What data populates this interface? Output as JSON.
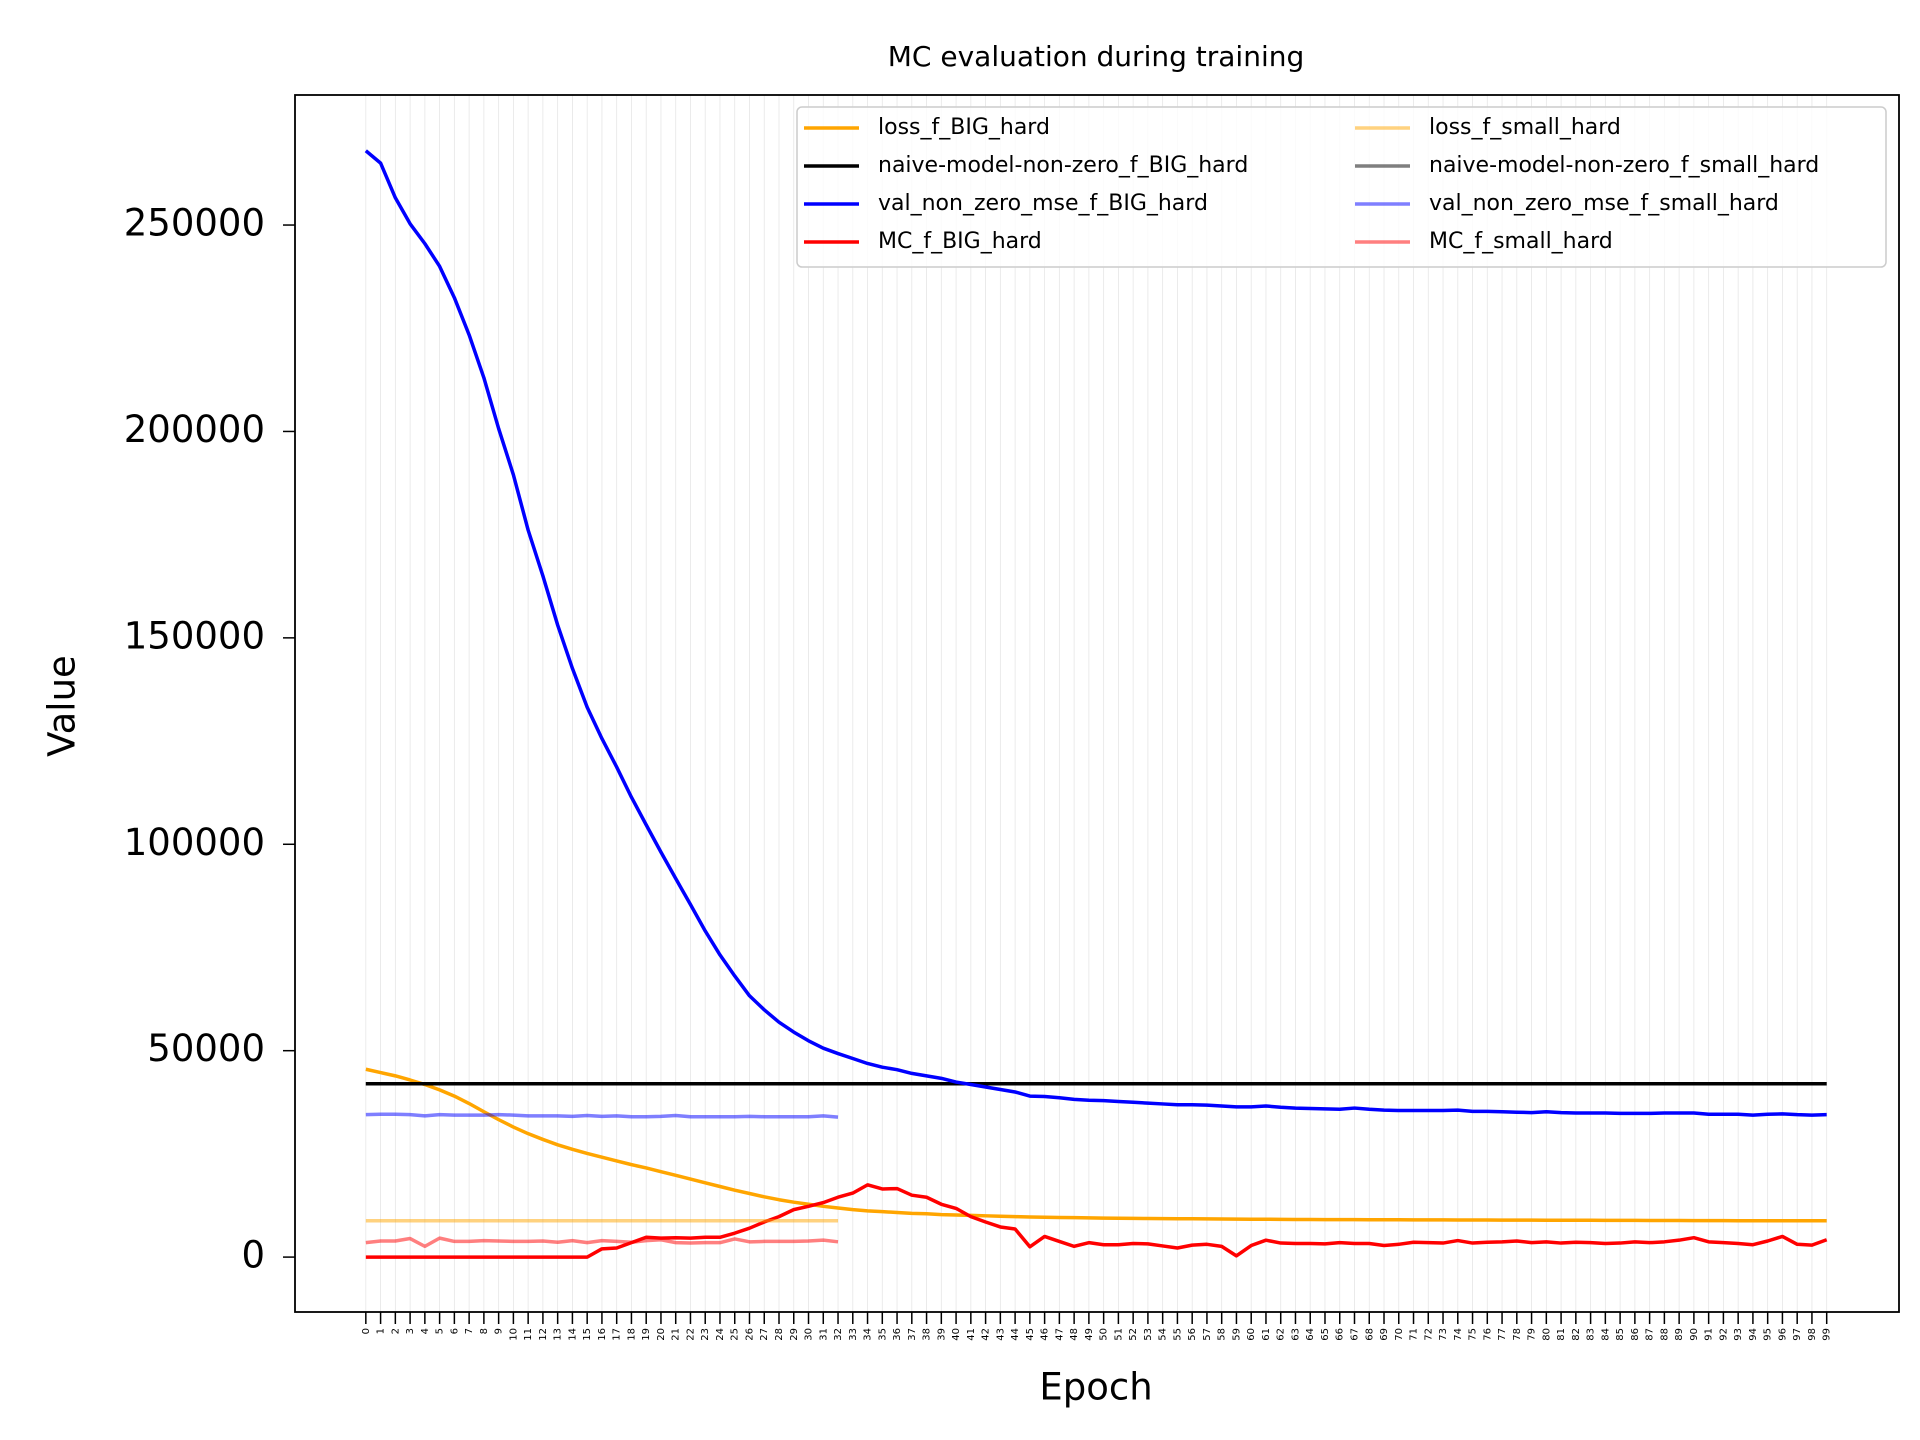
{
  "chart_data": {
    "type": "line",
    "title": "MC evaluation during training",
    "xlabel": "Epoch",
    "ylabel": "Value",
    "x": [
      0,
      1,
      2,
      3,
      4,
      5,
      6,
      7,
      8,
      9,
      10,
      11,
      12,
      13,
      14,
      15,
      16,
      17,
      18,
      19,
      20,
      21,
      22,
      23,
      24,
      25,
      26,
      27,
      28,
      29,
      30,
      31,
      32,
      33,
      34,
      35,
      36,
      37,
      38,
      39,
      40,
      41,
      42,
      43,
      44,
      45,
      46,
      47,
      48,
      49,
      50,
      51,
      52,
      53,
      54,
      55,
      56,
      57,
      58,
      59,
      60,
      61,
      62,
      63,
      64,
      65,
      66,
      67,
      68,
      69,
      70,
      71,
      72,
      73,
      74,
      75,
      76,
      77,
      78,
      79,
      80,
      81,
      82,
      83,
      84,
      85,
      86,
      87,
      88,
      89,
      90,
      91,
      92,
      93,
      94,
      95,
      96,
      97,
      98,
      99
    ],
    "xlim": [
      -4.8,
      103.9
    ],
    "xticks": [
      0,
      1,
      2,
      3,
      4,
      5,
      6,
      7,
      8,
      9,
      10,
      11,
      12,
      13,
      14,
      15,
      16,
      17,
      18,
      19,
      20,
      21,
      22,
      23,
      24,
      25,
      26,
      27,
      28,
      29,
      30,
      31,
      32,
      33,
      34,
      35,
      36,
      37,
      38,
      39,
      40,
      41,
      42,
      43,
      44,
      45,
      46,
      47,
      48,
      49,
      50,
      51,
      52,
      53,
      54,
      55,
      56,
      57,
      58,
      59,
      60,
      61,
      62,
      63,
      64,
      65,
      66,
      67,
      68,
      69,
      70,
      71,
      72,
      73,
      74,
      75,
      76,
      77,
      78,
      79,
      80,
      81,
      82,
      83,
      84,
      85,
      86,
      87,
      88,
      89,
      90,
      91,
      92,
      93,
      94,
      95,
      96,
      97,
      98,
      99
    ],
    "ylim": [
      -13300,
      281500
    ],
    "yticks": [
      0,
      50000,
      100000,
      150000,
      200000,
      250000
    ],
    "grid": "x",
    "legend": "upper right",
    "series": [
      {
        "name": "loss_f_BIG_hard",
        "color": "#ffa500",
        "alpha": 1,
        "values": [
          45500,
          44700,
          43900,
          42900,
          41800,
          40500,
          39000,
          37200,
          35200,
          33300,
          31500,
          29900,
          28500,
          27200,
          26100,
          25100,
          24200,
          23300,
          22400,
          21600,
          20700,
          19800,
          18900,
          18000,
          17100,
          16200,
          15400,
          14600,
          13900,
          13300,
          12800,
          12300,
          11900,
          11500,
          11200,
          11000,
          10800,
          10600,
          10500,
          10300,
          10200,
          10100,
          10000,
          9900,
          9800,
          9700,
          9650,
          9600,
          9550,
          9500,
          9450,
          9400,
          9380,
          9350,
          9320,
          9300,
          9280,
          9250,
          9230,
          9200,
          9180,
          9160,
          9140,
          9120,
          9100,
          9090,
          9080,
          9070,
          9060,
          9050,
          9040,
          9030,
          9020,
          9010,
          9000,
          8990,
          8980,
          8970,
          8960,
          8950,
          8940,
          8930,
          8920,
          8910,
          8900,
          8890,
          8880,
          8870,
          8860,
          8850,
          8840,
          8830,
          8820,
          8810,
          8800,
          8800,
          8800,
          8800,
          8800,
          8800
        ]
      },
      {
        "name": "naive-model-non-zero_f_BIG_hard",
        "color": "#000000",
        "alpha": 1,
        "values": [
          42000,
          42000,
          42000,
          42000,
          42000,
          42000,
          42000,
          42000,
          42000,
          42000,
          42000,
          42000,
          42000,
          42000,
          42000,
          42000,
          42000,
          42000,
          42000,
          42000,
          42000,
          42000,
          42000,
          42000,
          42000,
          42000,
          42000,
          42000,
          42000,
          42000,
          42000,
          42000,
          42000,
          42000,
          42000,
          42000,
          42000,
          42000,
          42000,
          42000,
          42000,
          42000,
          42000,
          42000,
          42000,
          42000,
          42000,
          42000,
          42000,
          42000,
          42000,
          42000,
          42000,
          42000,
          42000,
          42000,
          42000,
          42000,
          42000,
          42000,
          42000,
          42000,
          42000,
          42000,
          42000,
          42000,
          42000,
          42000,
          42000,
          42000,
          42000,
          42000,
          42000,
          42000,
          42000,
          42000,
          42000,
          42000,
          42000,
          42000,
          42000,
          42000,
          42000,
          42000,
          42000,
          42000,
          42000,
          42000,
          42000,
          42000,
          42000,
          42000,
          42000,
          42000,
          42000,
          42000,
          42000,
          42000,
          42000,
          42000
        ]
      },
      {
        "name": "val_non_zero_mse_f_BIG_hard",
        "color": "#0000ff",
        "alpha": 1,
        "values": [
          268000,
          265000,
          256600,
          250300,
          245500,
          240000,
          232400,
          223400,
          213000,
          200700,
          189500,
          176100,
          165000,
          153100,
          142600,
          133200,
          125600,
          118700,
          111400,
          104700,
          98100,
          91700,
          85400,
          79000,
          73200,
          68100,
          63300,
          59900,
          56900,
          54500,
          52400,
          50600,
          49300,
          48100,
          46900,
          46000,
          45400,
          44500,
          43900,
          43300,
          42400,
          41800,
          41200,
          40600,
          40000,
          39000,
          38900,
          38600,
          38200,
          38000,
          37900,
          37700,
          37500,
          37300,
          37100,
          36900,
          36900,
          36800,
          36600,
          36400,
          36400,
          36600,
          36300,
          36100,
          36000,
          35900,
          35800,
          36100,
          35800,
          35600,
          35500,
          35500,
          35500,
          35500,
          35600,
          35300,
          35300,
          35200,
          35100,
          35000,
          35200,
          35000,
          34900,
          34900,
          34900,
          34800,
          34800,
          34800,
          34900,
          34900,
          34900,
          34600,
          34600,
          34600,
          34400,
          34600,
          34700,
          34500,
          34400,
          34500
        ]
      },
      {
        "name": "MC_f_BIG_hard",
        "color": "#ff0000",
        "alpha": 1,
        "values": [
          0,
          0,
          0,
          0,
          0,
          0,
          0,
          0,
          0,
          0,
          0,
          0,
          0,
          0,
          0,
          0,
          2000,
          2200,
          3500,
          4800,
          4600,
          4700,
          4600,
          4800,
          4800,
          5800,
          7000,
          8500,
          9800,
          11500,
          12300,
          13200,
          14500,
          15500,
          17500,
          16500,
          16600,
          15000,
          14500,
          12800,
          11800,
          9800,
          8500,
          7300,
          6800,
          2500,
          5000,
          3800,
          2600,
          3500,
          3000,
          3000,
          3300,
          3200,
          2700,
          2200,
          2900,
          3100,
          2600,
          300,
          2800,
          4100,
          3400,
          3300,
          3300,
          3200,
          3500,
          3300,
          3300,
          2800,
          3100,
          3600,
          3500,
          3400,
          4000,
          3400,
          3600,
          3700,
          3900,
          3500,
          3700,
          3400,
          3600,
          3500,
          3300,
          3400,
          3700,
          3500,
          3700,
          4100,
          4700,
          3700,
          3500,
          3300,
          3000,
          3900,
          5000,
          3100,
          2900,
          4200
        ]
      },
      {
        "name": "loss_f_small_hard",
        "color": "#ffa500",
        "alpha": 0.5,
        "values": [
          8800,
          8800,
          8800,
          8800,
          8800,
          8800,
          8800,
          8800,
          8800,
          8800,
          8800,
          8800,
          8800,
          8800,
          8800,
          8800,
          8800,
          8800,
          8800,
          8800,
          8800,
          8800,
          8800,
          8800,
          8800,
          8800,
          8800,
          8800,
          8800,
          8800,
          8800,
          8800,
          8800,
          null,
          null,
          null,
          null,
          null,
          null,
          null,
          null,
          null,
          null,
          null,
          null,
          null,
          null,
          null,
          null,
          null,
          null,
          null,
          null,
          null,
          null,
          null,
          null,
          null,
          null,
          null,
          null,
          null,
          null,
          null,
          null,
          null,
          null,
          null,
          null,
          null,
          null,
          null,
          null,
          null,
          null,
          null,
          null,
          null,
          null,
          null,
          null,
          null,
          null,
          null,
          null,
          null,
          null,
          null,
          null,
          null,
          null,
          null,
          null,
          null,
          null,
          null,
          null,
          null,
          null,
          null
        ]
      },
      {
        "name": "naive-model-non-zero_f_small_hard",
        "color": "#000000",
        "alpha": 0.5,
        "values": [
          42000,
          42000,
          42000,
          42000,
          42000,
          42000,
          42000,
          42000,
          42000,
          42000,
          42000,
          42000,
          42000,
          42000,
          42000,
          42000,
          42000,
          42000,
          42000,
          42000,
          42000,
          42000,
          42000,
          42000,
          42000,
          42000,
          42000,
          42000,
          42000,
          42000,
          42000,
          42000,
          42000,
          null,
          null,
          null,
          null,
          null,
          null,
          null,
          null,
          null,
          null,
          null,
          null,
          null,
          null,
          null,
          null,
          null,
          null,
          null,
          null,
          null,
          null,
          null,
          null,
          null,
          null,
          null,
          null,
          null,
          null,
          null,
          null,
          null,
          null,
          null,
          null,
          null,
          null,
          null,
          null,
          null,
          null,
          null,
          null,
          null,
          null,
          null,
          null,
          null,
          null,
          null,
          null,
          null,
          null,
          null,
          null,
          null,
          null,
          null,
          null,
          null,
          null,
          null,
          null,
          null,
          null,
          null
        ]
      },
      {
        "name": "val_non_zero_mse_f_small_hard",
        "color": "#0000ff",
        "alpha": 0.5,
        "values": [
          34500,
          34600,
          34600,
          34500,
          34200,
          34500,
          34400,
          34400,
          34400,
          34500,
          34400,
          34200,
          34200,
          34200,
          34100,
          34300,
          34100,
          34200,
          34000,
          34000,
          34100,
          34300,
          34000,
          34000,
          34000,
          34000,
          34100,
          34000,
          34000,
          34000,
          34000,
          34200,
          33900,
          null,
          null,
          null,
          null,
          null,
          null,
          null,
          null,
          null,
          null,
          null,
          null,
          null,
          null,
          null,
          null,
          null,
          null,
          null,
          null,
          null,
          null,
          null,
          null,
          null,
          null,
          null,
          null,
          null,
          null,
          null,
          null,
          null,
          null,
          null,
          null,
          null,
          null,
          null,
          null,
          null,
          null,
          null,
          null,
          null,
          null,
          null,
          null,
          null,
          null,
          null,
          null,
          null,
          null,
          null,
          null,
          null,
          null,
          null,
          null,
          null,
          null,
          null,
          null,
          null,
          null,
          null
        ]
      },
      {
        "name": "MC_f_small_hard",
        "color": "#ff0000",
        "alpha": 0.5,
        "values": [
          3500,
          3900,
          3900,
          4500,
          2600,
          4600,
          3800,
          3800,
          4000,
          3900,
          3800,
          3800,
          3900,
          3600,
          4000,
          3500,
          4000,
          3800,
          3600,
          4000,
          4200,
          3500,
          3400,
          3500,
          3500,
          4400,
          3700,
          3800,
          3800,
          3800,
          3900,
          4100,
          3700,
          null,
          null,
          null,
          null,
          null,
          null,
          null,
          null,
          null,
          null,
          null,
          null,
          null,
          null,
          null,
          null,
          null,
          null,
          null,
          null,
          null,
          null,
          null,
          null,
          null,
          null,
          null,
          null,
          null,
          null,
          null,
          null,
          null,
          null,
          null,
          null,
          null,
          null,
          null,
          null,
          null,
          null,
          null,
          null,
          null,
          null,
          null,
          null,
          null,
          null,
          null,
          null,
          null,
          null,
          null,
          null,
          null,
          null,
          null,
          null,
          null,
          null,
          null,
          null,
          null,
          null,
          null
        ]
      }
    ]
  }
}
